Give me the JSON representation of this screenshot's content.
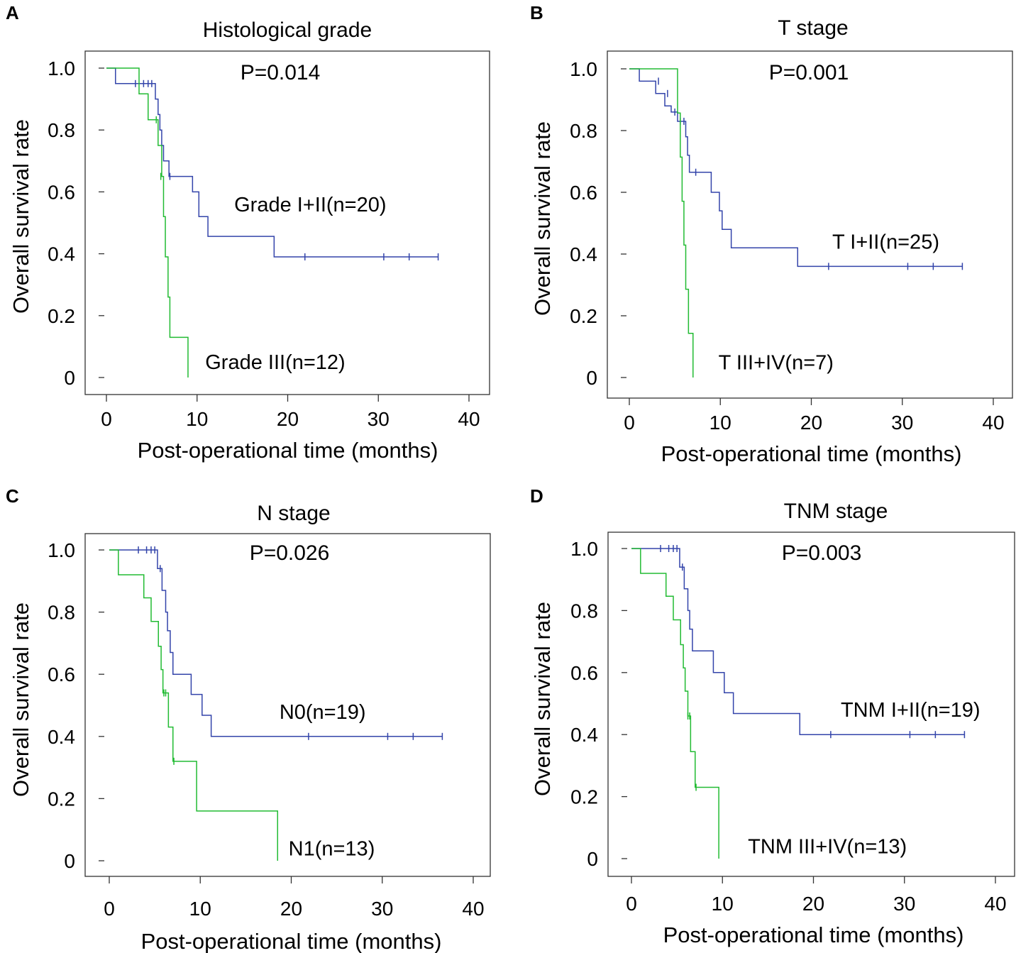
{
  "colors": {
    "group1": "#3344aa",
    "group2": "#22bb33",
    "axis": "#333333"
  },
  "chart_data": [
    {
      "panel": "A",
      "type": "line",
      "title": "Histological grade",
      "p_value": "P=0.014",
      "xlabel": "Post-operational time (months)",
      "ylabel": "Overall survival rate",
      "xlim": [
        0,
        40
      ],
      "ylim": [
        0,
        1
      ],
      "xticks": [
        0,
        10,
        20,
        30,
        40
      ],
      "yticks": [
        0,
        0.2,
        0.4,
        0.6,
        0.8,
        1.0
      ],
      "x_tick_labels": [
        "0",
        "10",
        "20",
        "30",
        "40"
      ],
      "y_tick_labels": [
        "0",
        "0.2",
        "0.4",
        "0.6",
        "0.8",
        "1.0"
      ],
      "series": [
        {
          "name": "Grade I+II(n=20)",
          "label_x": 14.1,
          "label_y": 0.56,
          "steps": [
            [
              0,
              1.0
            ],
            [
              1.0,
              0.95
            ],
            [
              5.4,
              0.9
            ],
            [
              5.7,
              0.85
            ],
            [
              5.9,
              0.8
            ],
            [
              6.1,
              0.75
            ],
            [
              6.3,
              0.7
            ],
            [
              6.9,
              0.65
            ],
            [
              9.5,
              0.6
            ],
            [
              10.2,
              0.52
            ],
            [
              11.2,
              0.456
            ],
            [
              18.5,
              0.39
            ],
            [
              36.6,
              0.39
            ]
          ],
          "censored": [
            [
              3.2,
              0.95
            ],
            [
              4.1,
              0.95
            ],
            [
              4.6,
              0.95
            ],
            [
              5.0,
              0.95
            ],
            [
              7.0,
              0.65
            ],
            [
              21.9,
              0.39
            ],
            [
              30.6,
              0.39
            ],
            [
              33.4,
              0.39
            ],
            [
              36.6,
              0.39
            ]
          ]
        },
        {
          "name": "Grade III(n=12)",
          "label_x": 10.9,
          "label_y": 0.05,
          "steps": [
            [
              0,
              1.0
            ],
            [
              3.6,
              0.917
            ],
            [
              4.6,
              0.833
            ],
            [
              5.7,
              0.75
            ],
            [
              6.1,
              0.65
            ],
            [
              6.3,
              0.52
            ],
            [
              6.5,
              0.39
            ],
            [
              6.8,
              0.26
            ],
            [
              7.0,
              0.13
            ],
            [
              9.0,
              0.0
            ]
          ],
          "censored": [
            [
              5.5,
              0.833
            ],
            [
              6.0,
              0.65
            ]
          ]
        }
      ]
    },
    {
      "panel": "B",
      "type": "line",
      "title": "T stage",
      "p_value": "P=0.001",
      "xlabel": "Post-operational time (months)",
      "ylabel": "Overall survival rate",
      "xlim": [
        0,
        40
      ],
      "ylim": [
        0,
        1
      ],
      "xticks": [
        0,
        10,
        20,
        30,
        40
      ],
      "yticks": [
        0,
        0.2,
        0.4,
        0.6,
        0.8,
        1.0
      ],
      "x_tick_labels": [
        "0",
        "10",
        "20",
        "30",
        "40"
      ],
      "y_tick_labels": [
        "0",
        "0.2",
        "0.4",
        "0.6",
        "0.8",
        "1.0"
      ],
      "series": [
        {
          "name": "T I+II(n=25)",
          "label_x": 22.3,
          "label_y": 0.44,
          "steps": [
            [
              0,
              1.0
            ],
            [
              1.1,
              0.96
            ],
            [
              2.9,
              0.92
            ],
            [
              3.9,
              0.88
            ],
            [
              4.6,
              0.86
            ],
            [
              5.3,
              0.83
            ],
            [
              6.2,
              0.78
            ],
            [
              6.4,
              0.72
            ],
            [
              6.6,
              0.665
            ],
            [
              9.0,
              0.6
            ],
            [
              9.9,
              0.54
            ],
            [
              10.2,
              0.48
            ],
            [
              11.2,
              0.42
            ],
            [
              18.5,
              0.36
            ],
            [
              36.6,
              0.36
            ]
          ],
          "censored": [
            [
              3.2,
              0.96
            ],
            [
              4.2,
              0.92
            ],
            [
              5.0,
              0.86
            ],
            [
              5.6,
              0.83
            ],
            [
              6.0,
              0.83
            ],
            [
              7.3,
              0.665
            ],
            [
              21.9,
              0.36
            ],
            [
              30.6,
              0.36
            ],
            [
              33.4,
              0.36
            ],
            [
              36.6,
              0.36
            ]
          ]
        },
        {
          "name": "T III+IV(n=7)",
          "label_x": 9.8,
          "label_y": 0.05,
          "steps": [
            [
              0,
              1.0
            ],
            [
              5.3,
              0.857
            ],
            [
              5.6,
              0.714
            ],
            [
              5.8,
              0.571
            ],
            [
              6.0,
              0.429
            ],
            [
              6.2,
              0.286
            ],
            [
              6.5,
              0.143
            ],
            [
              7.0,
              0.0
            ]
          ],
          "censored": []
        }
      ]
    },
    {
      "panel": "C",
      "type": "line",
      "title": "N stage",
      "p_value": "P=0.026",
      "xlabel": "Post-operational time (months)",
      "ylabel": "Overall survival rate",
      "xlim": [
        0,
        40
      ],
      "ylim": [
        0,
        1
      ],
      "xticks": [
        0,
        10,
        20,
        30,
        40
      ],
      "yticks": [
        0,
        0.2,
        0.4,
        0.6,
        0.8,
        1.0
      ],
      "x_tick_labels": [
        "0",
        "10",
        "20",
        "30",
        "40"
      ],
      "y_tick_labels": [
        "0",
        "0.2",
        "0.4",
        "0.6",
        "0.8",
        "1.0"
      ],
      "series": [
        {
          "name": "N0(n=19)",
          "label_x": 18.7,
          "label_y": 0.48,
          "steps": [
            [
              0,
              1.0
            ],
            [
              5.3,
              0.94
            ],
            [
              5.8,
              0.87
            ],
            [
              6.2,
              0.8
            ],
            [
              6.4,
              0.74
            ],
            [
              6.7,
              0.67
            ],
            [
              7.0,
              0.6
            ],
            [
              9.0,
              0.535
            ],
            [
              10.2,
              0.468
            ],
            [
              11.2,
              0.4
            ],
            [
              36.6,
              0.4
            ]
          ],
          "censored": [
            [
              3.2,
              1.0
            ],
            [
              4.1,
              1.0
            ],
            [
              4.6,
              1.0
            ],
            [
              5.0,
              1.0
            ],
            [
              5.6,
              0.94
            ],
            [
              21.9,
              0.4
            ],
            [
              30.6,
              0.4
            ],
            [
              33.4,
              0.4
            ],
            [
              36.6,
              0.4
            ]
          ]
        },
        {
          "name": "N1(n=13)",
          "label_x": 19.7,
          "label_y": 0.04,
          "steps": [
            [
              0,
              1.0
            ],
            [
              1.0,
              0.92
            ],
            [
              3.8,
              0.846
            ],
            [
              4.6,
              0.77
            ],
            [
              5.4,
              0.69
            ],
            [
              5.7,
              0.615
            ],
            [
              5.9,
              0.54
            ],
            [
              6.5,
              0.43
            ],
            [
              7.0,
              0.32
            ],
            [
              9.6,
              0.16
            ],
            [
              18.5,
              0.0
            ]
          ],
          "censored": [
            [
              6.0,
              0.54
            ],
            [
              6.2,
              0.54
            ],
            [
              7.1,
              0.32
            ]
          ]
        }
      ]
    },
    {
      "panel": "D",
      "type": "line",
      "title": "TNM stage",
      "p_value": "P=0.003",
      "xlabel": "Post-operational time (months)",
      "ylabel": "Overall survival rate",
      "xlim": [
        0,
        40
      ],
      "ylim": [
        0,
        1
      ],
      "xticks": [
        0,
        10,
        20,
        30,
        40
      ],
      "yticks": [
        0,
        0.2,
        0.4,
        0.6,
        0.8,
        1.0
      ],
      "x_tick_labels": [
        "0",
        "10",
        "20",
        "30",
        "40"
      ],
      "y_tick_labels": [
        "0",
        "0.2",
        "0.4",
        "0.6",
        "0.8",
        "1.0"
      ],
      "series": [
        {
          "name": "TNM I+II(n=19)",
          "label_x": 23.0,
          "label_y": 0.48,
          "steps": [
            [
              0,
              1.0
            ],
            [
              5.3,
              0.94
            ],
            [
              5.8,
              0.87
            ],
            [
              6.2,
              0.8
            ],
            [
              6.4,
              0.74
            ],
            [
              6.7,
              0.67
            ],
            [
              9.0,
              0.6
            ],
            [
              10.2,
              0.535
            ],
            [
              11.2,
              0.468
            ],
            [
              18.5,
              0.4
            ],
            [
              36.6,
              0.4
            ]
          ],
          "censored": [
            [
              3.2,
              1.0
            ],
            [
              4.1,
              1.0
            ],
            [
              4.6,
              1.0
            ],
            [
              5.0,
              1.0
            ],
            [
              5.6,
              0.94
            ],
            [
              21.9,
              0.4
            ],
            [
              30.6,
              0.4
            ],
            [
              33.4,
              0.4
            ],
            [
              36.6,
              0.4
            ]
          ]
        },
        {
          "name": "TNM III+IV(n=13)",
          "label_x": 12.8,
          "label_y": 0.04,
          "steps": [
            [
              0,
              1.0
            ],
            [
              1.0,
              0.92
            ],
            [
              3.8,
              0.846
            ],
            [
              4.6,
              0.77
            ],
            [
              5.4,
              0.69
            ],
            [
              5.7,
              0.615
            ],
            [
              5.9,
              0.54
            ],
            [
              6.2,
              0.46
            ],
            [
              6.5,
              0.345
            ],
            [
              7.0,
              0.23
            ],
            [
              9.6,
              0.0
            ]
          ],
          "censored": [
            [
              6.2,
              0.46
            ],
            [
              6.4,
              0.46
            ],
            [
              7.1,
              0.23
            ]
          ]
        }
      ]
    }
  ]
}
